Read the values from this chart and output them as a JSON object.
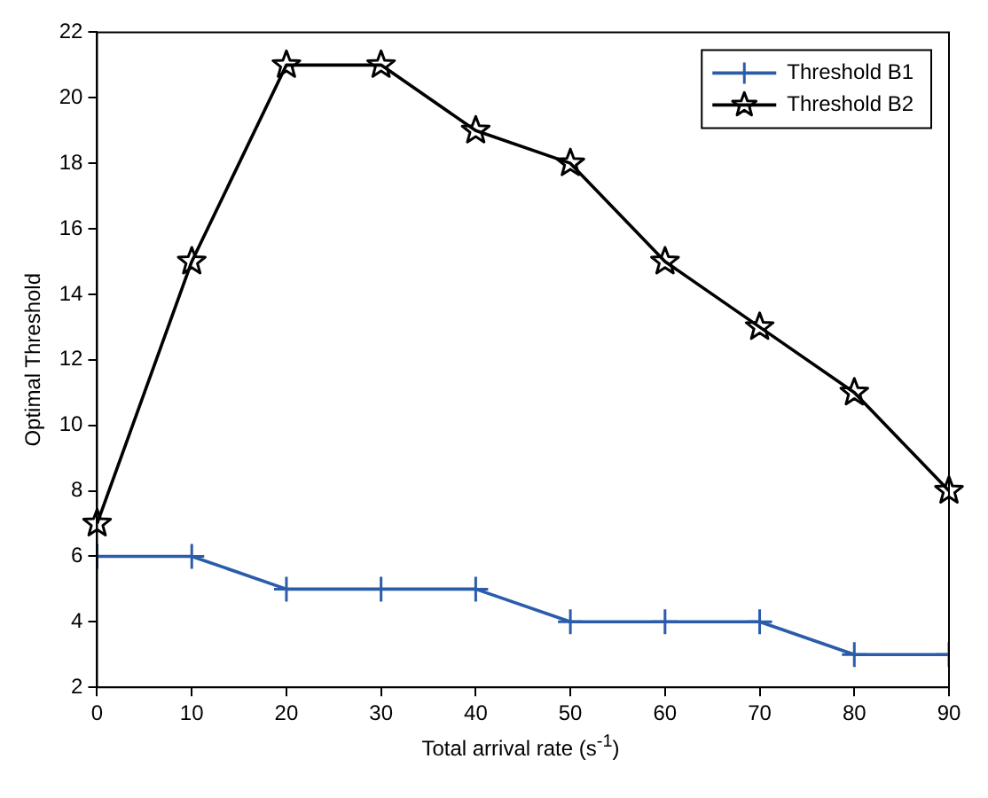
{
  "chart_data": {
    "type": "line",
    "xlabel": "Total arrival rate (s$^{-1}$)",
    "ylabel": "Optimal Threshold",
    "x": [
      0,
      10,
      20,
      30,
      40,
      50,
      60,
      70,
      80,
      90
    ],
    "series": [
      {
        "name": "Threshold B1",
        "color": "#2a5caa",
        "marker": "cross",
        "values": [
          6,
          6,
          5,
          5,
          5,
          4,
          4,
          4,
          3,
          3
        ]
      },
      {
        "name": "Threshold B2",
        "color": "#000000",
        "marker": "star",
        "values": [
          7,
          15,
          21,
          21,
          19,
          18,
          15,
          13,
          11,
          8
        ]
      }
    ],
    "xlim": [
      0,
      90
    ],
    "xticks": [
      0,
      10,
      20,
      30,
      40,
      50,
      60,
      70,
      80,
      90
    ],
    "ylim": [
      2,
      22
    ],
    "yticks": [
      2,
      4,
      6,
      8,
      10,
      12,
      14,
      16,
      18,
      20,
      22
    ],
    "grid": false,
    "legend": "top right",
    "line_style": "solid"
  }
}
